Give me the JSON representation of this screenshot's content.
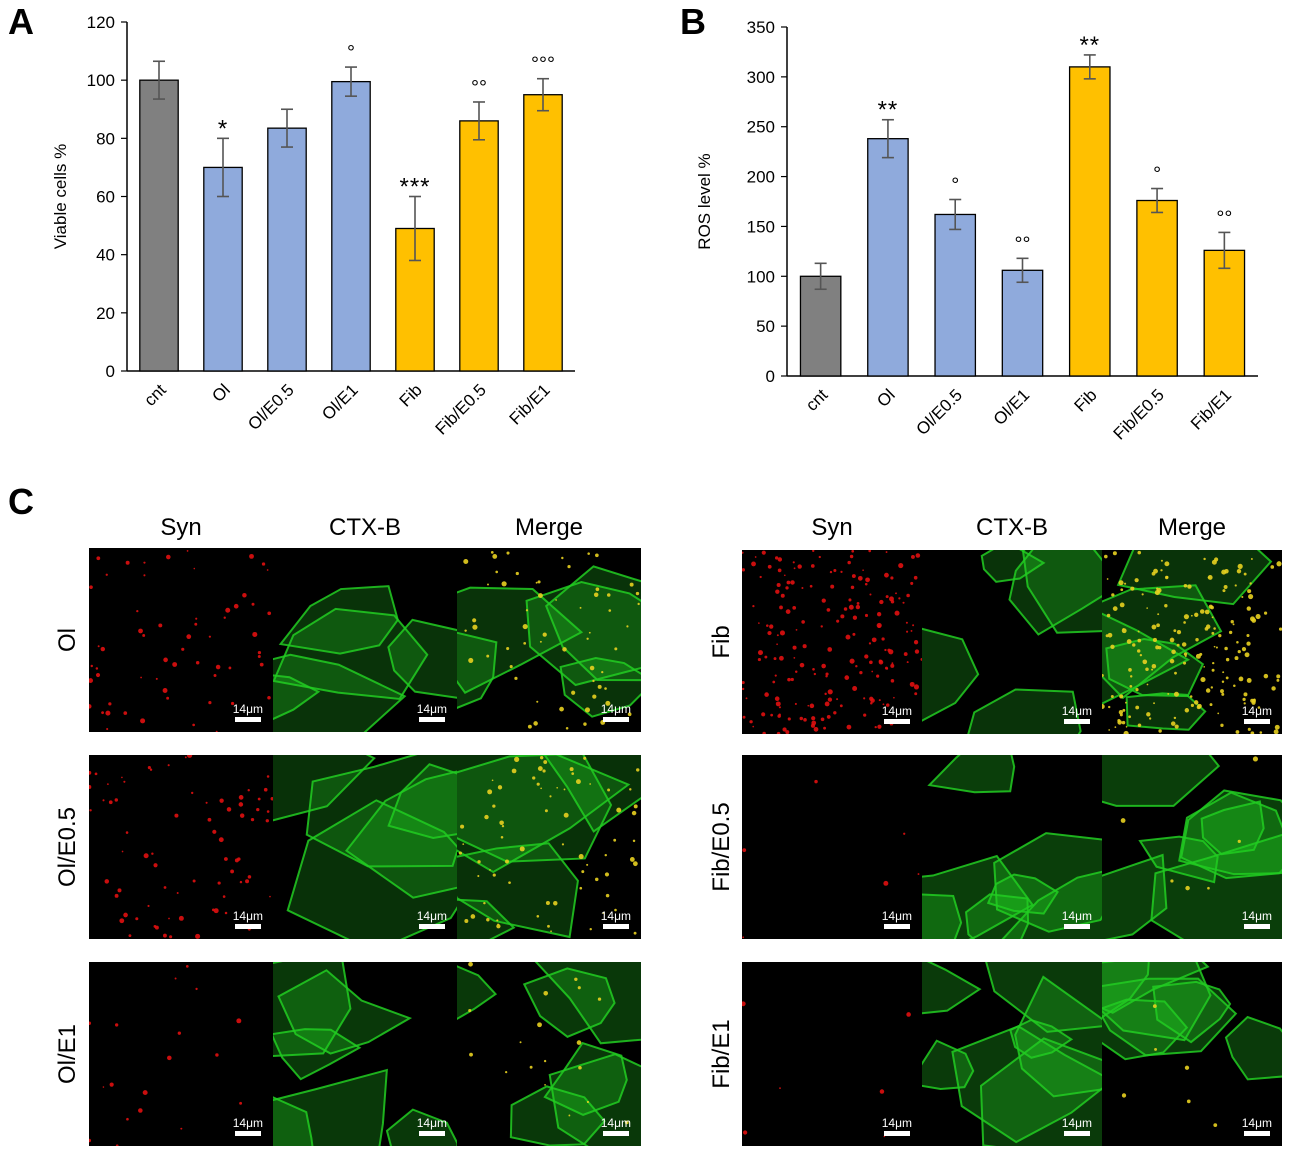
{
  "panels": {
    "a": "A",
    "b": "B",
    "c": "C"
  },
  "chart_data": [
    {
      "type": "bar",
      "ylabel": "Viable cells %",
      "ylim": [
        0,
        120
      ],
      "yticks": [
        0,
        20,
        40,
        60,
        80,
        100,
        120
      ],
      "categories": [
        "cnt",
        "Ol",
        "Ol/E0.5",
        "Ol/E1",
        "Fib",
        "Fib/E0.5",
        "Fib/E1"
      ],
      "values": [
        100,
        70,
        83.5,
        99.5,
        49,
        86,
        95
      ],
      "errors": [
        6.5,
        10,
        6.5,
        5,
        11,
        6.5,
        5.5
      ],
      "annotations": [
        "",
        "*",
        "",
        "°",
        "***",
        "°°",
        "°°°"
      ],
      "colors": [
        "#808080",
        "#8faadc",
        "#8faadc",
        "#8faadc",
        "#ffc000",
        "#ffc000",
        "#ffc000"
      ]
    },
    {
      "type": "bar",
      "ylabel": "ROS level %",
      "ylim": [
        0,
        350
      ],
      "yticks": [
        0,
        50,
        100,
        150,
        200,
        250,
        300,
        350
      ],
      "categories": [
        "cnt",
        "Ol",
        "Ol/E0.5",
        "Ol/E1",
        "Fib",
        "Fib/E0.5",
        "Fib/E1"
      ],
      "values": [
        100,
        238,
        162,
        106,
        310,
        176,
        126
      ],
      "errors": [
        13,
        19,
        15,
        12,
        12,
        12,
        18
      ],
      "annotations": [
        "",
        "**",
        "°",
        "°°",
        "**",
        "°",
        "°°"
      ],
      "colors": [
        "#808080",
        "#8faadc",
        "#8faadc",
        "#8faadc",
        "#ffc000",
        "#ffc000",
        "#ffc000"
      ]
    }
  ],
  "micrographs": {
    "column_headers": [
      "Syn",
      "CTX-B",
      "Merge"
    ],
    "scale_label": "14μm",
    "left_rows": [
      "Ol",
      "Ol/E0.5",
      "Ol/E1"
    ],
    "right_rows": [
      "Fib",
      "Fib/E0.5",
      "Fib/E1"
    ],
    "channel_colors": {
      "syn": "#e01010",
      "ctx": "#22cc22",
      "merge": "#e8d020"
    }
  }
}
